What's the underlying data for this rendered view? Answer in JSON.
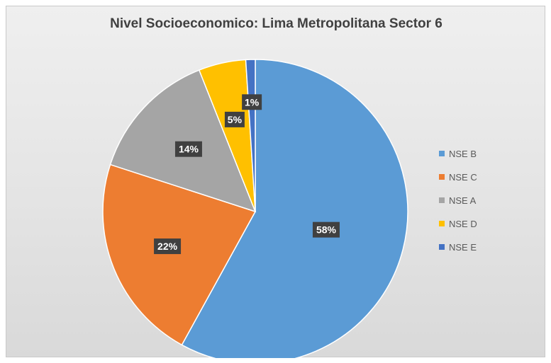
{
  "chart_data": {
    "type": "pie",
    "title": "Nivel Socioeconomico: Lima Metropolitana Sector 6",
    "categories": [
      "NSE B",
      "NSE C",
      "NSE A",
      "NSE D",
      "NSE E"
    ],
    "values": [
      58,
      22,
      14,
      5,
      1
    ],
    "labels": [
      "58%",
      "22%",
      "14%",
      "5%",
      "1%"
    ],
    "colors": [
      "#5b9bd5",
      "#ed7d31",
      "#a5a5a5",
      "#ffc000",
      "#4472c4"
    ],
    "legend_position": "right",
    "start_angle": "12 o'clock",
    "direction": "clockwise"
  }
}
